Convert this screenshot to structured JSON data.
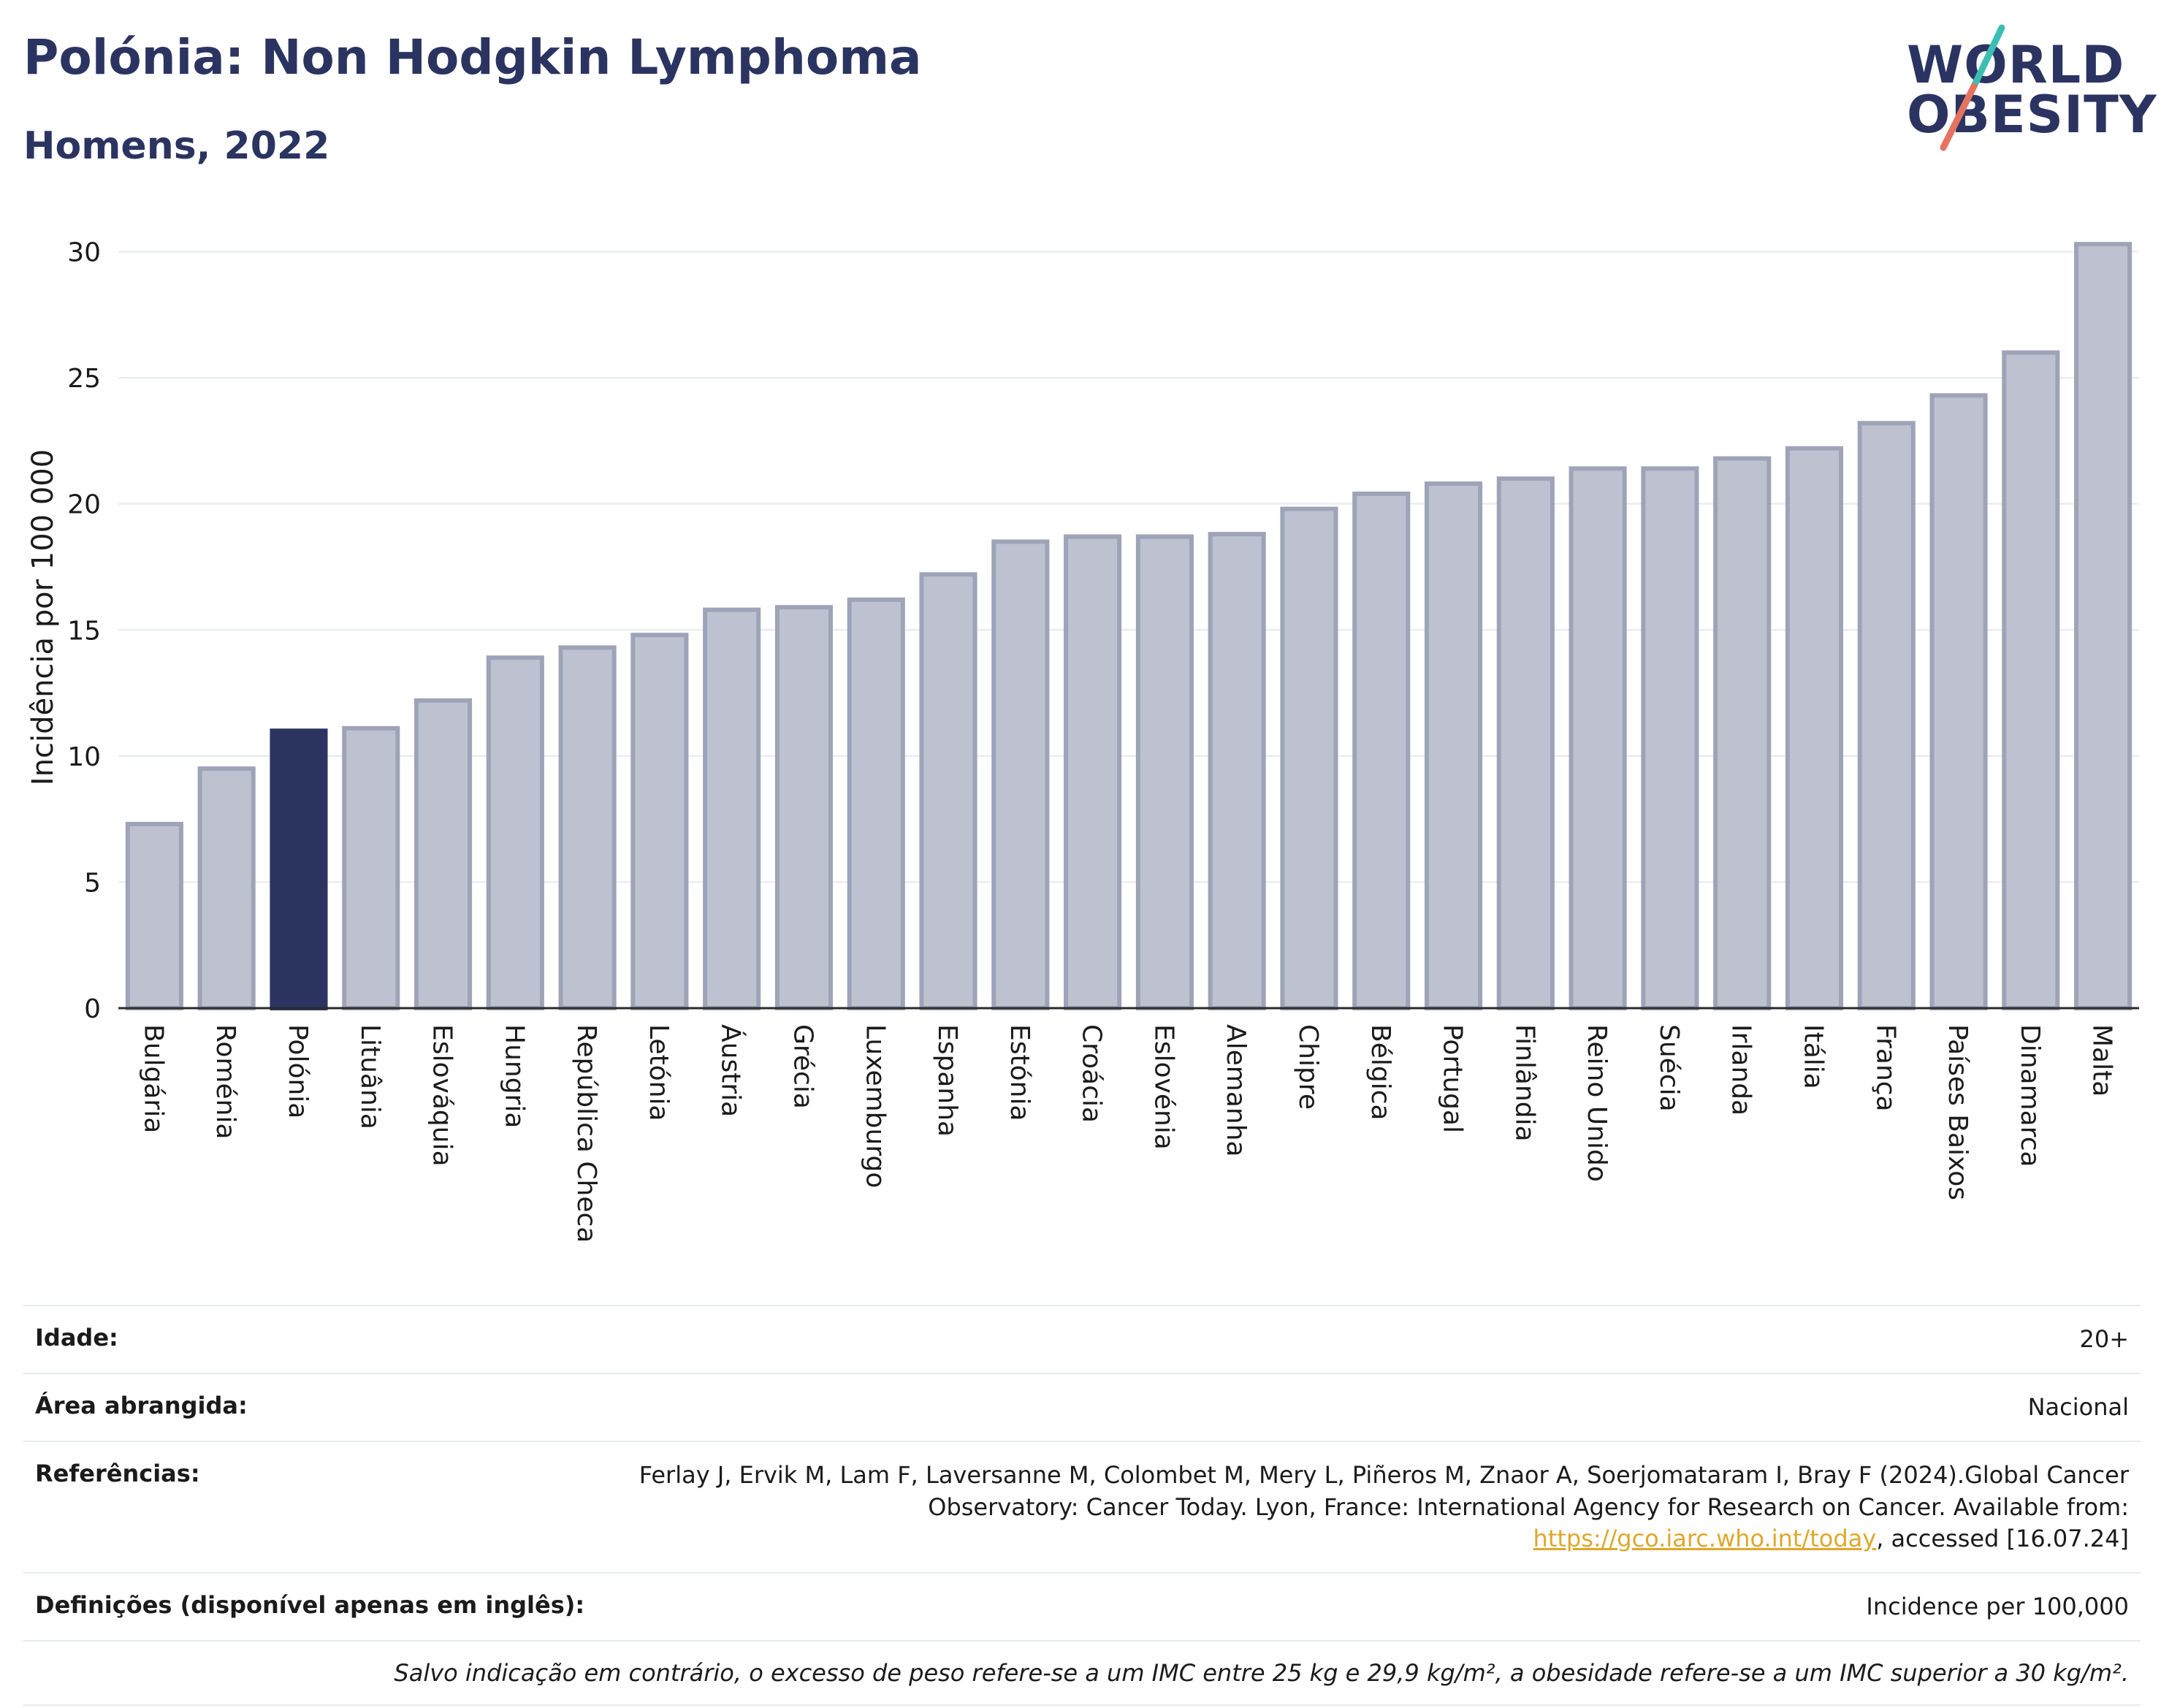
{
  "header": {
    "title": "Polónia: Non Hodgkin Lymphoma",
    "subtitle": "Homens, 2022"
  },
  "logo": {
    "line1": "WORLD",
    "line2": "OBESITY",
    "colors": {
      "text": "#2b3461",
      "slash_top": "#3bbfb4",
      "slash_bottom": "#e5735f"
    }
  },
  "chart_data": {
    "type": "bar",
    "title": "Polónia: Non Hodgkin Lymphoma",
    "subtitle": "Homens, 2022",
    "xlabel": "",
    "ylabel": "Incidência por 100 000",
    "ylim": [
      0,
      31
    ],
    "yticks": [
      0,
      5,
      10,
      15,
      20,
      25,
      30
    ],
    "grid": true,
    "highlight": "Polónia",
    "colors": {
      "bar": "#bec2d0",
      "bar_edge": "#9ea3b8",
      "highlight": "#2b3461",
      "grid": "#e6e9ef"
    },
    "categories": [
      "Bulgária",
      "Roménia",
      "Polónia",
      "Lituânia",
      "Eslováquia",
      "Hungria",
      "República Checa",
      "Letónia",
      "Áustria",
      "Grécia",
      "Luxemburgo",
      "Espanha",
      "Estónia",
      "Croácia",
      "Eslovénia",
      "Alemanha",
      "Chipre",
      "Bélgica",
      "Portugal",
      "Finlândia",
      "Reino Unido",
      "Suécia",
      "Irlanda",
      "Itália",
      "França",
      "Países Baixos",
      "Dinamarca",
      "Malta"
    ],
    "values": [
      7.3,
      9.5,
      11.0,
      11.1,
      12.2,
      13.9,
      14.3,
      14.8,
      15.8,
      15.9,
      16.2,
      17.2,
      18.5,
      18.7,
      18.7,
      18.8,
      19.8,
      20.4,
      20.8,
      21.0,
      21.4,
      21.4,
      21.8,
      22.2,
      23.2,
      24.3,
      26.0,
      30.3
    ]
  },
  "info": {
    "idade_label": "Idade:",
    "idade_value": "20+",
    "area_label": "Área abrangida:",
    "area_value": "Nacional",
    "ref_label": "Referências:",
    "ref_text": "Ferlay J, Ervik M, Lam F, Laversanne M, Colombet M, Mery L, Piñeros M, Znaor A, Soerjomataram I, Bray F (2024).Global Cancer Observatory: Cancer Today. Lyon, France: International Agency for Research on Cancer. Available from:",
    "ref_link": "https://gco.iarc.who.int/today",
    "ref_suffix": ", accessed [16.07.24]",
    "def_label": "Definições (disponível apenas em inglês):",
    "def_value": "Incidence per 100,000",
    "note": "Salvo indicação em contrário, o excesso de peso refere-se a um IMC entre 25 kg e 29,9 kg/m², a obesidade refere-se a um IMC superior a 30 kg/m²."
  }
}
